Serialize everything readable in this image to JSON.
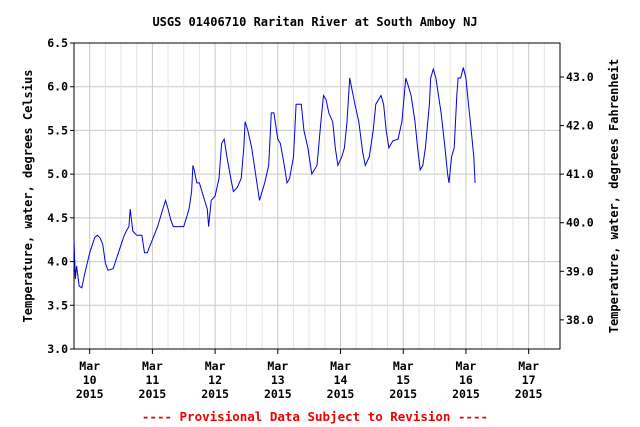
{
  "chart_data": {
    "type": "line",
    "title": "USGS 01406710 Raritan River at South Amboy NJ",
    "ylabel": "Temperature, water, degrees Celsius",
    "y2label": "Temperature, water, degrees Fahrenheit",
    "ylim": [
      3.0,
      6.5
    ],
    "y2lim": [
      37.4,
      43.7
    ],
    "yticks": [
      "3.0",
      "3.5",
      "4.0",
      "4.5",
      "5.0",
      "5.5",
      "6.0",
      "6.5"
    ],
    "y2ticks": [
      "38.0",
      "39.0",
      "40.0",
      "41.0",
      "42.0",
      "43.0"
    ],
    "x_start": "Mar 9 2015 18:00",
    "x_end": "Mar 17 2015 12:00",
    "xticks": [
      {
        "date": "Mar 10 2015",
        "month": "Mar",
        "day": "10",
        "year": "2015"
      },
      {
        "date": "Mar 11 2015",
        "month": "Mar",
        "day": "11",
        "year": "2015"
      },
      {
        "date": "Mar 12 2015",
        "month": "Mar",
        "day": "12",
        "year": "2015"
      },
      {
        "date": "Mar 13 2015",
        "month": "Mar",
        "day": "13",
        "year": "2015"
      },
      {
        "date": "Mar 14 2015",
        "month": "Mar",
        "day": "14",
        "year": "2015"
      },
      {
        "date": "Mar 15 2015",
        "month": "Mar",
        "day": "15",
        "year": "2015"
      },
      {
        "date": "Mar 16 2015",
        "month": "Mar",
        "day": "16",
        "year": "2015"
      },
      {
        "date": "Mar 17 2015",
        "month": "Mar",
        "day": "17",
        "year": "2015"
      }
    ],
    "grid": true,
    "series": [
      {
        "color": "#0000dd",
        "points": [
          [
            "Mar 9 2015 18:00",
            4.25
          ],
          [
            "Mar 9 2015 18:30",
            3.8
          ],
          [
            "Mar 9 2015 19:00",
            3.95
          ],
          [
            "Mar 9 2015 20:00",
            3.72
          ],
          [
            "Mar 9 2015 21:00",
            3.7
          ],
          [
            "Mar 9 2015 22:00",
            3.85
          ],
          [
            "Mar 10 2015 00:00",
            4.1
          ],
          [
            "Mar 10 2015 02:00",
            4.28
          ],
          [
            "Mar 10 2015 03:00",
            4.3
          ],
          [
            "Mar 10 2015 04:00",
            4.27
          ],
          [
            "Mar 10 2015 05:00",
            4.2
          ],
          [
            "Mar 10 2015 06:00",
            3.98
          ],
          [
            "Mar 10 2015 07:00",
            3.9
          ],
          [
            "Mar 10 2015 09:00",
            3.92
          ],
          [
            "Mar 10 2015 11:00",
            4.1
          ],
          [
            "Mar 10 2015 13:00",
            4.28
          ],
          [
            "Mar 10 2015 14:00",
            4.35
          ],
          [
            "Mar 10 2015 15:00",
            4.4
          ],
          [
            "Mar 10 2015 15:30",
            4.6
          ],
          [
            "Mar 10 2015 16:30",
            4.35
          ],
          [
            "Mar 10 2015 18:00",
            4.3
          ],
          [
            "Mar 10 2015 20:00",
            4.3
          ],
          [
            "Mar 10 2015 21:00",
            4.1
          ],
          [
            "Mar 10 2015 22:00",
            4.1
          ],
          [
            "Mar 11 2015 00:00",
            4.25
          ],
          [
            "Mar 11 2015 02:00",
            4.4
          ],
          [
            "Mar 11 2015 04:00",
            4.6
          ],
          [
            "Mar 11 2015 05:00",
            4.7
          ],
          [
            "Mar 11 2015 06:00",
            4.6
          ],
          [
            "Mar 11 2015 07:00",
            4.48
          ],
          [
            "Mar 11 2015 08:00",
            4.4
          ],
          [
            "Mar 11 2015 12:00",
            4.4
          ],
          [
            "Mar 11 2015 13:00",
            4.5
          ],
          [
            "Mar 11 2015 14:00",
            4.6
          ],
          [
            "Mar 11 2015 15:00",
            4.8
          ],
          [
            "Mar 11 2015 15:30",
            5.1
          ],
          [
            "Mar 11 2015 16:00",
            5.05
          ],
          [
            "Mar 11 2015 17:00",
            4.9
          ],
          [
            "Mar 11 2015 18:00",
            4.9
          ],
          [
            "Mar 11 2015 19:00",
            4.8
          ],
          [
            "Mar 11 2015 20:00",
            4.7
          ],
          [
            "Mar 11 2015 21:00",
            4.6
          ],
          [
            "Mar 11 2015 21:30",
            4.4
          ],
          [
            "Mar 11 2015 22:30",
            4.7
          ],
          [
            "Mar 12 2015 00:00",
            4.75
          ],
          [
            "Mar 12 2015 01:30",
            4.95
          ],
          [
            "Mar 12 2015 02:30",
            5.35
          ],
          [
            "Mar 12 2015 03:30",
            5.4
          ],
          [
            "Mar 12 2015 04:30",
            5.2
          ],
          [
            "Mar 12 2015 06:00",
            4.95
          ],
          [
            "Mar 12 2015 07:00",
            4.8
          ],
          [
            "Mar 12 2015 08:30",
            4.85
          ],
          [
            "Mar 12 2015 10:00",
            4.95
          ],
          [
            "Mar 12 2015 11:00",
            5.3
          ],
          [
            "Mar 12 2015 11:30",
            5.6
          ],
          [
            "Mar 12 2015 12:30",
            5.5
          ],
          [
            "Mar 12 2015 14:00",
            5.3
          ],
          [
            "Mar 12 2015 16:00",
            4.9
          ],
          [
            "Mar 12 2015 17:00",
            4.7
          ],
          [
            "Mar 12 2015 18:00",
            4.8
          ],
          [
            "Mar 12 2015 19:00",
            4.9
          ],
          [
            "Mar 12 2015 20:30",
            5.1
          ],
          [
            "Mar 12 2015 21:30",
            5.7
          ],
          [
            "Mar 12 2015 22:30",
            5.7
          ],
          [
            "Mar 13 2015 00:00",
            5.4
          ],
          [
            "Mar 13 2015 01:00",
            5.35
          ],
          [
            "Mar 13 2015 02:30",
            5.1
          ],
          [
            "Mar 13 2015 03:30",
            4.9
          ],
          [
            "Mar 13 2015 04:30",
            4.95
          ],
          [
            "Mar 13 2015 06:00",
            5.2
          ],
          [
            "Mar 13 2015 07:00",
            5.8
          ],
          [
            "Mar 13 2015 09:00",
            5.8
          ],
          [
            "Mar 13 2015 10:00",
            5.5
          ],
          [
            "Mar 13 2015 11:30",
            5.3
          ],
          [
            "Mar 13 2015 13:00",
            5.0
          ],
          [
            "Mar 13 2015 15:00",
            5.1
          ],
          [
            "Mar 13 2015 16:30",
            5.6
          ],
          [
            "Mar 13 2015 17:30",
            5.9
          ],
          [
            "Mar 13 2015 18:30",
            5.85
          ],
          [
            "Mar 13 2015 19:30",
            5.7
          ],
          [
            "Mar 13 2015 21:00",
            5.6
          ],
          [
            "Mar 13 2015 22:00",
            5.3
          ],
          [
            "Mar 13 2015 23:00",
            5.1
          ],
          [
            "Mar 14 2015 00:30",
            5.2
          ],
          [
            "Mar 14 2015 01:30",
            5.3
          ],
          [
            "Mar 14 2015 02:30",
            5.6
          ],
          [
            "Mar 14 2015 03:30",
            6.1
          ],
          [
            "Mar 14 2015 04:30",
            5.95
          ],
          [
            "Mar 14 2015 05:30",
            5.8
          ],
          [
            "Mar 14 2015 07:00",
            5.6
          ],
          [
            "Mar 14 2015 08:30",
            5.25
          ],
          [
            "Mar 14 2015 09:30",
            5.1
          ],
          [
            "Mar 14 2015 11:00",
            5.2
          ],
          [
            "Mar 14 2015 12:30",
            5.5
          ],
          [
            "Mar 14 2015 13:30",
            5.8
          ],
          [
            "Mar 14 2015 15:30",
            5.9
          ],
          [
            "Mar 14 2015 16:30",
            5.8
          ],
          [
            "Mar 14 2015 17:30",
            5.5
          ],
          [
            "Mar 14 2015 18:30",
            5.3
          ],
          [
            "Mar 14 2015 20:00",
            5.38
          ],
          [
            "Mar 14 2015 22:00",
            5.4
          ],
          [
            "Mar 14 2015 23:30",
            5.6
          ],
          [
            "Mar 15 2015 01:00",
            6.1
          ],
          [
            "Mar 15 2015 02:00",
            6.0
          ],
          [
            "Mar 15 2015 03:00",
            5.9
          ],
          [
            "Mar 15 2015 04:30",
            5.6
          ],
          [
            "Mar 15 2015 05:30",
            5.3
          ],
          [
            "Mar 15 2015 06:30",
            5.05
          ],
          [
            "Mar 15 2015 07:30",
            5.1
          ],
          [
            "Mar 15 2015 08:30",
            5.3
          ],
          [
            "Mar 15 2015 10:00",
            5.8
          ],
          [
            "Mar 15 2015 10:30",
            6.1
          ],
          [
            "Mar 15 2015 11:30",
            6.2
          ],
          [
            "Mar 15 2015 12:30",
            6.1
          ],
          [
            "Mar 15 2015 13:30",
            5.9
          ],
          [
            "Mar 15 2015 14:30",
            5.7
          ],
          [
            "Mar 15 2015 16:00",
            5.3
          ],
          [
            "Mar 15 2015 17:00",
            5.0
          ],
          [
            "Mar 15 2015 17:30",
            4.9
          ],
          [
            "Mar 15 2015 18:30",
            5.2
          ],
          [
            "Mar 15 2015 19:30",
            5.3
          ],
          [
            "Mar 15 2015 20:30",
            5.9
          ],
          [
            "Mar 15 2015 21:00",
            6.1
          ],
          [
            "Mar 15 2015 22:00",
            6.1
          ],
          [
            "Mar 15 2015 23:00",
            6.22
          ],
          [
            "Mar 16 2015 00:00",
            6.1
          ],
          [
            "Mar 16 2015 01:00",
            5.8
          ],
          [
            "Mar 16 2015 02:00",
            5.5
          ],
          [
            "Mar 16 2015 03:00",
            5.2
          ],
          [
            "Mar 16 2015 03:30",
            4.9
          ]
        ]
      }
    ]
  },
  "footer": "---- Provisional Data Subject to Revision ----"
}
